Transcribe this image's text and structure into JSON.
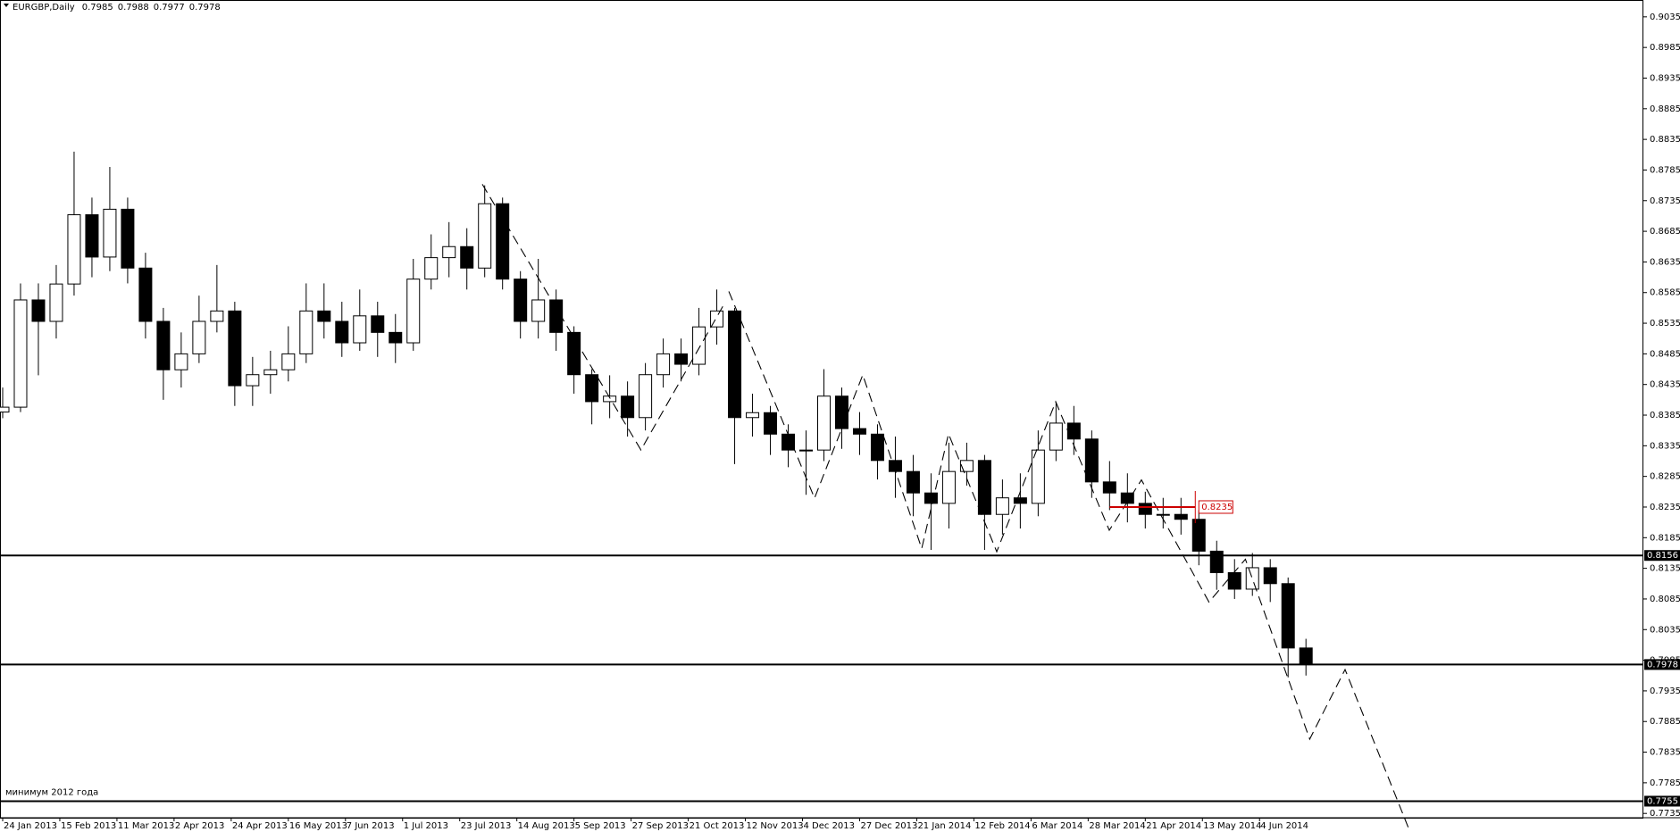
{
  "chart_data": {
    "type": "candlestick",
    "title": "EURGBP,Daily",
    "header_ohlc": [
      0.7985,
      0.7988,
      0.7977,
      0.7978
    ],
    "annotation": "минимум 2012 года",
    "x": [
      0,
      5,
      10,
      15,
      20,
      25,
      30,
      35,
      40,
      45,
      50,
      55,
      60,
      65,
      70,
      75,
      80,
      85,
      90,
      95,
      100,
      105,
      110,
      115,
      120,
      125,
      130,
      135,
      140,
      145,
      150,
      155,
      160,
      165,
      170,
      175,
      180,
      185,
      190,
      195,
      200,
      205,
      210,
      215,
      220,
      225,
      230,
      235,
      240,
      245,
      250,
      255,
      260,
      265,
      270,
      275,
      280,
      285,
      290,
      295,
      300,
      305,
      310,
      315,
      320,
      325,
      330,
      335,
      340,
      345,
      350,
      355,
      360,
      365
    ],
    "open": [
      0.839,
      0.8398,
      0.8573,
      0.8538,
      0.8599,
      0.8712,
      0.8643,
      0.8721,
      0.8625,
      0.8538,
      0.8459,
      0.8485,
      0.8538,
      0.8555,
      0.8433,
      0.8451,
      0.8459,
      0.8485,
      0.8555,
      0.8538,
      0.8503,
      0.8547,
      0.852,
      0.8503,
      0.8607,
      0.8642,
      0.866,
      0.8625,
      0.873,
      0.8607,
      0.8538,
      0.8573,
      0.852,
      0.8451,
      0.8407,
      0.8416,
      0.8381,
      0.8451,
      0.8485,
      0.8468,
      0.8529,
      0.8555,
      0.8381,
      0.8389,
      0.8354,
      0.8328,
      0.8328,
      0.8416,
      0.8363,
      0.8354,
      0.8311,
      0.8293,
      0.8258,
      0.8241,
      0.8293,
      0.8311,
      0.8223,
      0.825,
      0.8241,
      0.8328,
      0.8372,
      0.8346,
      0.8276,
      0.8258,
      0.8241,
      0.8223,
      0.8223,
      0.8215,
      0.8163,
      0.8128,
      0.8101,
      0.8136,
      0.811,
      0.8005
    ],
    "high": [
      0.843,
      0.86,
      0.86,
      0.863,
      0.8815,
      0.874,
      0.879,
      0.874,
      0.865,
      0.856,
      0.852,
      0.858,
      0.863,
      0.857,
      0.848,
      0.849,
      0.853,
      0.86,
      0.86,
      0.857,
      0.859,
      0.857,
      0.855,
      0.864,
      0.868,
      0.87,
      0.869,
      0.876,
      0.874,
      0.862,
      0.864,
      0.859,
      0.853,
      0.846,
      0.845,
      0.844,
      0.847,
      0.851,
      0.851,
      0.856,
      0.859,
      0.856,
      0.842,
      0.84,
      0.837,
      0.836,
      0.846,
      0.843,
      0.839,
      0.837,
      0.835,
      0.832,
      0.829,
      0.834,
      0.834,
      0.832,
      0.828,
      0.829,
      0.836,
      0.8405,
      0.84,
      0.836,
      0.831,
      0.829,
      0.826,
      0.825,
      0.825,
      0.823,
      0.818,
      0.815,
      0.816,
      0.815,
      0.812,
      0.802
    ],
    "low": [
      0.838,
      0.839,
      0.845,
      0.851,
      0.858,
      0.861,
      0.862,
      0.86,
      0.851,
      0.841,
      0.843,
      0.847,
      0.852,
      0.84,
      0.84,
      0.842,
      0.844,
      0.847,
      0.851,
      0.848,
      0.849,
      0.848,
      0.847,
      0.849,
      0.859,
      0.861,
      0.859,
      0.861,
      0.859,
      0.851,
      0.851,
      0.849,
      0.842,
      0.837,
      0.838,
      0.835,
      0.836,
      0.843,
      0.844,
      0.845,
      0.85,
      0.8305,
      0.835,
      0.832,
      0.83,
      0.8255,
      0.831,
      0.833,
      0.832,
      0.828,
      0.825,
      0.822,
      0.8165,
      0.82,
      0.827,
      0.8165,
      0.819,
      0.82,
      0.822,
      0.831,
      0.832,
      0.825,
      0.823,
      0.821,
      0.82,
      0.82,
      0.819,
      0.814,
      0.81,
      0.8085,
      0.809,
      0.808,
      0.7957,
      0.796
    ],
    "close": [
      0.8398,
      0.8573,
      0.8538,
      0.8599,
      0.8712,
      0.8643,
      0.8721,
      0.8625,
      0.8538,
      0.8459,
      0.8485,
      0.8538,
      0.8555,
      0.8433,
      0.8451,
      0.8459,
      0.8485,
      0.8555,
      0.8538,
      0.8503,
      0.8547,
      0.852,
      0.8503,
      0.8607,
      0.8642,
      0.866,
      0.8625,
      0.873,
      0.8607,
      0.8538,
      0.8573,
      0.852,
      0.8451,
      0.8407,
      0.8416,
      0.8381,
      0.8451,
      0.8485,
      0.8468,
      0.8529,
      0.8555,
      0.8381,
      0.8389,
      0.8354,
      0.8328,
      0.8328,
      0.8416,
      0.8363,
      0.8354,
      0.8311,
      0.8293,
      0.8258,
      0.8241,
      0.8293,
      0.8311,
      0.8223,
      0.825,
      0.8241,
      0.8328,
      0.8372,
      0.8346,
      0.8276,
      0.8258,
      0.8241,
      0.8223,
      0.8223,
      0.8215,
      0.8163,
      0.8128,
      0.8101,
      0.8136,
      0.811,
      0.8005,
      0.7978
    ],
    "up_color": "#ffffff",
    "down_color": "#000000",
    "xlim": [
      -0.5,
      459.5
    ],
    "xticks": [
      {
        "value": 0,
        "label": "24 Jan 2013"
      },
      {
        "value": 16,
        "label": "15 Feb 2013"
      },
      {
        "value": 32,
        "label": "11 Mar 2013"
      },
      {
        "value": 48,
        "label": "2 Apr 2013"
      },
      {
        "value": 64,
        "label": "24 Apr 2013"
      },
      {
        "value": 80,
        "label": "16 May 2013"
      },
      {
        "value": 96,
        "label": "7 Jun 2013"
      },
      {
        "value": 112,
        "label": "1 Jul 2013"
      },
      {
        "value": 128,
        "label": "23 Jul 2013"
      },
      {
        "value": 144,
        "label": "14 Aug 2013"
      },
      {
        "value": 160,
        "label": "5 Sep 2013"
      },
      {
        "value": 176,
        "label": "27 Sep 2013"
      },
      {
        "value": 192,
        "label": "21 Oct 2013"
      },
      {
        "value": 208,
        "label": "12 Nov 2013"
      },
      {
        "value": 224,
        "label": "4 Dec 2013"
      },
      {
        "value": 240,
        "label": "27 Dec 2013"
      },
      {
        "value": 256,
        "label": "21 Jan 2014"
      },
      {
        "value": 272,
        "label": "12 Feb 2014"
      },
      {
        "value": 288,
        "label": "6 Mar 2014"
      },
      {
        "value": 304,
        "label": "28 Mar 2014"
      },
      {
        "value": 320,
        "label": "21 Apr 2014"
      },
      {
        "value": 336,
        "label": "13 May 2014"
      },
      {
        "value": 352,
        "label": "4 Jun 2014"
      }
    ],
    "ylim": [
      0.7728,
      0.9061
    ],
    "yticks": [
      0.9035,
      0.8985,
      0.8935,
      0.8885,
      0.8835,
      0.8785,
      0.8735,
      0.8685,
      0.8635,
      0.8585,
      0.8535,
      0.8485,
      0.8435,
      0.8385,
      0.8335,
      0.8285,
      0.8235,
      0.8185,
      0.8135,
      0.8085,
      0.8035,
      0.7985,
      0.7935,
      0.7885,
      0.7835,
      0.7785,
      0.7735
    ],
    "levels": [
      0.8156,
      0.7978,
      0.7755
    ],
    "red_level": {
      "value": 0.8235,
      "color": "#cc0000"
    }
  }
}
